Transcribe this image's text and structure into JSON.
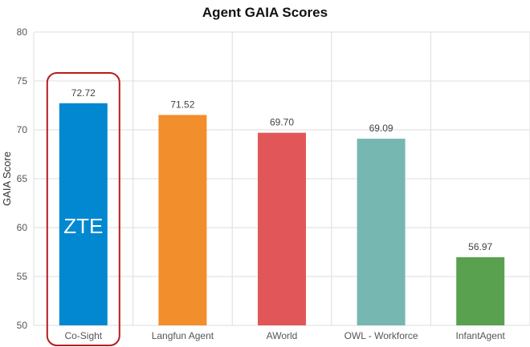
{
  "chart_data": {
    "type": "bar",
    "title": "Agent GAIA Scores",
    "xlabel": "",
    "ylabel": "GAIA Score",
    "ylim": [
      50,
      80
    ],
    "yticks": [
      50,
      55,
      60,
      65,
      70,
      75,
      80
    ],
    "categories": [
      "Co-Sight",
      "Langfun Agent",
      "AWorld",
      "OWL - Workforce",
      "InfantAgent"
    ],
    "values": [
      72.72,
      71.52,
      69.7,
      69.09,
      56.97
    ],
    "value_labels": [
      "72.72",
      "71.52",
      "69.70",
      "69.09",
      "56.97"
    ],
    "colors": [
      "#0288d1",
      "#f28e2b",
      "#e15759",
      "#76b7b2",
      "#59a14f"
    ],
    "grid": true,
    "highlight": {
      "category": "Co-Sight",
      "color": "#b71c1c",
      "logo_text": "ZTE"
    }
  }
}
